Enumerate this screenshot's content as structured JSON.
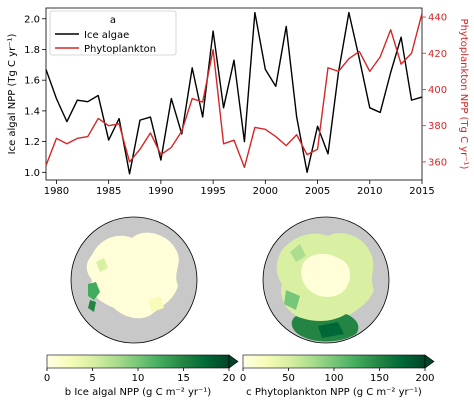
{
  "chart_data": {
    "type": "line",
    "panel_label": "a",
    "x_range": [
      1979,
      2015
    ],
    "x_ticks": [
      1980,
      1985,
      1990,
      1995,
      2000,
      2005,
      2010,
      2015
    ],
    "y_left": {
      "label": "Ice algal NPP (Tg C yr⁻¹)",
      "range": [
        0.95,
        2.07
      ],
      "ticks": [
        1.0,
        1.2,
        1.4,
        1.6,
        1.8,
        2.0
      ],
      "color": "#000000"
    },
    "y_right": {
      "label": "Phytoplankton NPP (Tg C yr⁻¹)",
      "range": [
        350,
        445
      ],
      "ticks": [
        360,
        380,
        400,
        420,
        440
      ],
      "color": "#d62728"
    },
    "legend_position": "top-left",
    "series": [
      {
        "name": "Ice algae",
        "axis": "left",
        "color": "#000000",
        "x": [
          1979,
          1980,
          1981,
          1982,
          1983,
          1984,
          1985,
          1986,
          1987,
          1988,
          1989,
          1990,
          1991,
          1992,
          1993,
          1994,
          1995,
          1996,
          1997,
          1998,
          1999,
          2000,
          2001,
          2002,
          2003,
          2004,
          2005,
          2006,
          2007,
          2008,
          2009,
          2010,
          2011,
          2012,
          2013,
          2014,
          2015
        ],
        "values": [
          1.67,
          1.48,
          1.33,
          1.47,
          1.46,
          1.5,
          1.21,
          1.35,
          0.99,
          1.34,
          1.36,
          1.08,
          1.48,
          1.25,
          1.68,
          1.36,
          1.92,
          1.42,
          1.73,
          1.2,
          2.04,
          1.67,
          1.56,
          1.95,
          1.36,
          1.0,
          1.3,
          1.12,
          1.65,
          2.04,
          1.74,
          1.42,
          1.39,
          1.65,
          1.88,
          1.47,
          1.49
        ]
      },
      {
        "name": "Phytoplankton",
        "axis": "right",
        "color": "#d62728",
        "x": [
          1979,
          1980,
          1981,
          1982,
          1983,
          1984,
          1985,
          1986,
          1987,
          1988,
          1989,
          1990,
          1991,
          1992,
          1993,
          1994,
          1995,
          1996,
          1997,
          1998,
          1999,
          2000,
          2001,
          2002,
          2003,
          2004,
          2005,
          2006,
          2007,
          2008,
          2009,
          2010,
          2011,
          2012,
          2013,
          2014,
          2015
        ],
        "values": [
          358,
          373,
          370,
          373,
          374,
          384,
          380,
          381,
          360,
          367,
          376,
          364,
          368,
          377,
          395,
          393,
          422,
          370,
          372,
          357,
          379,
          378,
          374,
          369,
          375,
          364,
          367,
          412,
          410,
          417,
          421,
          410,
          418,
          433,
          414,
          420,
          442
        ]
      }
    ],
    "maps": [
      {
        "caption": "b Ice algal NPP (g C m⁻² yr⁻¹)",
        "colorbar_range": [
          0,
          20
        ],
        "colorbar_ticks": [
          0,
          5,
          10,
          15,
          20
        ]
      },
      {
        "caption": "c Phytoplankton NPP (g C m⁻² yr⁻¹)",
        "colorbar_range": [
          0,
          200
        ],
        "colorbar_ticks": [
          0,
          50,
          100,
          150,
          200
        ]
      }
    ],
    "colormap": [
      "#ffffe5",
      "#f7fcb9",
      "#d9f0a3",
      "#addd8e",
      "#78c679",
      "#41ab5d",
      "#238443",
      "#006837",
      "#004529"
    ]
  }
}
